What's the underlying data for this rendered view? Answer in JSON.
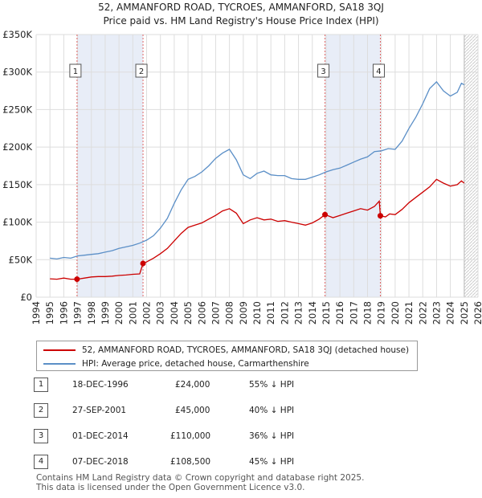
{
  "header": {
    "title_line1": "52, AMMANFORD ROAD, TYCROES, AMMANFORD, SA18 3QJ",
    "title_line2": "Price paid vs. HM Land Registry's House Price Index (HPI)"
  },
  "chart_data": {
    "type": "line",
    "title": "52, AMMANFORD ROAD, TYCROES, AMMANFORD, SA18 3QJ — Price paid vs. HM Land Registry's House Price Index (HPI)",
    "xlim": [
      1994,
      2026
    ],
    "ylim": [
      0,
      350000
    ],
    "y_ticks": [
      {
        "value": 0,
        "label": "£0"
      },
      {
        "value": 50000,
        "label": "£50K"
      },
      {
        "value": 100000,
        "label": "£100K"
      },
      {
        "value": 150000,
        "label": "£150K"
      },
      {
        "value": 200000,
        "label": "£200K"
      },
      {
        "value": 250000,
        "label": "£250K"
      },
      {
        "value": 300000,
        "label": "£300K"
      },
      {
        "value": 350000,
        "label": "£350K"
      }
    ],
    "x_ticks": [
      "1994",
      "1995",
      "1996",
      "1997",
      "1998",
      "1999",
      "2000",
      "2001",
      "2002",
      "2003",
      "2004",
      "2005",
      "2006",
      "2007",
      "2008",
      "2009",
      "2010",
      "2011",
      "2012",
      "2013",
      "2014",
      "2015",
      "2016",
      "2017",
      "2018",
      "2019",
      "2020",
      "2021",
      "2022",
      "2023",
      "2024",
      "2025",
      "2026"
    ],
    "ownership_shading": [
      [
        1996.96,
        2001.74
      ],
      [
        2014.92,
        2018.93
      ]
    ],
    "data_end": 2025.0,
    "sale_points": [
      {
        "id": "1",
        "x": 1996.96,
        "y": 24000
      },
      {
        "id": "2",
        "x": 2001.74,
        "y": 45000
      },
      {
        "id": "3",
        "x": 2014.92,
        "y": 110000
      },
      {
        "id": "4",
        "x": 2018.93,
        "y": 108500
      }
    ],
    "series": [
      {
        "name": "52, AMMANFORD ROAD, TYCROES, AMMANFORD, SA18 3QJ (detached house)",
        "color": "#cc0000",
        "points": [
          [
            1995,
            24500
          ],
          [
            1995.5,
            24000
          ],
          [
            1996,
            25500
          ],
          [
            1996.5,
            24000
          ],
          [
            1996.96,
            24000
          ],
          [
            1997.5,
            25500
          ],
          [
            1998,
            27000
          ],
          [
            1998.5,
            27500
          ],
          [
            1999,
            27500
          ],
          [
            1999.5,
            28000
          ],
          [
            2000,
            29000
          ],
          [
            2000.5,
            29500
          ],
          [
            2001,
            30500
          ],
          [
            2001.5,
            31000
          ],
          [
            2001.74,
            45000
          ],
          [
            2002,
            47000
          ],
          [
            2002.5,
            52000
          ],
          [
            2003,
            58000
          ],
          [
            2003.5,
            65000
          ],
          [
            2004,
            75000
          ],
          [
            2004.5,
            85000
          ],
          [
            2005,
            93000
          ],
          [
            2005.5,
            96000
          ],
          [
            2006,
            99000
          ],
          [
            2006.5,
            104000
          ],
          [
            2007,
            109000
          ],
          [
            2007.5,
            115000
          ],
          [
            2008,
            118000
          ],
          [
            2008.5,
            112000
          ],
          [
            2009,
            98000
          ],
          [
            2009.5,
            103000
          ],
          [
            2010,
            106000
          ],
          [
            2010.5,
            103000
          ],
          [
            2011,
            104000
          ],
          [
            2011.5,
            101000
          ],
          [
            2012,
            102000
          ],
          [
            2012.5,
            100000
          ],
          [
            2013,
            98000
          ],
          [
            2013.5,
            96000
          ],
          [
            2014,
            99000
          ],
          [
            2014.5,
            104000
          ],
          [
            2014.92,
            110000
          ],
          [
            2015.5,
            106000
          ],
          [
            2016,
            109000
          ],
          [
            2016.5,
            112000
          ],
          [
            2017,
            115000
          ],
          [
            2017.5,
            118000
          ],
          [
            2018,
            116000
          ],
          [
            2018.5,
            121000
          ],
          [
            2018.85,
            128000
          ],
          [
            2018.93,
            108500
          ],
          [
            2019.3,
            107000
          ],
          [
            2019.6,
            111000
          ],
          [
            2020,
            110000
          ],
          [
            2020.5,
            117000
          ],
          [
            2021,
            126000
          ],
          [
            2021.5,
            133000
          ],
          [
            2022,
            140000
          ],
          [
            2022.5,
            147000
          ],
          [
            2023,
            157000
          ],
          [
            2023.5,
            152000
          ],
          [
            2024,
            148000
          ],
          [
            2024.5,
            150000
          ],
          [
            2024.8,
            155000
          ],
          [
            2025,
            152000
          ]
        ]
      },
      {
        "name": "HPI: Average price, detached house, Carmarthenshire",
        "color": "#5b8fc7",
        "points": [
          [
            1995,
            52000
          ],
          [
            1995.5,
            51000
          ],
          [
            1996,
            53000
          ],
          [
            1996.5,
            52000
          ],
          [
            1997,
            55000
          ],
          [
            1997.5,
            56000
          ],
          [
            1998,
            57000
          ],
          [
            1998.5,
            58000
          ],
          [
            1999,
            60000
          ],
          [
            1999.5,
            62000
          ],
          [
            2000,
            65000
          ],
          [
            2000.5,
            67000
          ],
          [
            2001,
            69000
          ],
          [
            2001.5,
            72000
          ],
          [
            2002,
            76000
          ],
          [
            2002.5,
            82000
          ],
          [
            2003,
            92000
          ],
          [
            2003.5,
            105000
          ],
          [
            2004,
            125000
          ],
          [
            2004.5,
            143000
          ],
          [
            2005,
            157000
          ],
          [
            2005.5,
            161000
          ],
          [
            2006,
            167000
          ],
          [
            2006.5,
            175000
          ],
          [
            2007,
            185000
          ],
          [
            2007.5,
            192000
          ],
          [
            2008,
            197000
          ],
          [
            2008.5,
            183000
          ],
          [
            2009,
            163000
          ],
          [
            2009.5,
            158000
          ],
          [
            2010,
            165000
          ],
          [
            2010.5,
            168000
          ],
          [
            2011,
            163000
          ],
          [
            2011.5,
            162000
          ],
          [
            2012,
            162000
          ],
          [
            2012.5,
            158000
          ],
          [
            2013,
            157000
          ],
          [
            2013.5,
            157000
          ],
          [
            2014,
            160000
          ],
          [
            2014.5,
            163000
          ],
          [
            2015,
            167000
          ],
          [
            2015.5,
            170000
          ],
          [
            2016,
            172000
          ],
          [
            2016.5,
            176000
          ],
          [
            2017,
            180000
          ],
          [
            2017.5,
            184000
          ],
          [
            2018,
            187000
          ],
          [
            2018.5,
            194000
          ],
          [
            2019,
            195000
          ],
          [
            2019.5,
            198000
          ],
          [
            2020,
            197000
          ],
          [
            2020.5,
            208000
          ],
          [
            2021,
            225000
          ],
          [
            2021.5,
            240000
          ],
          [
            2022,
            258000
          ],
          [
            2022.5,
            278000
          ],
          [
            2023,
            287000
          ],
          [
            2023.5,
            275000
          ],
          [
            2024,
            268000
          ],
          [
            2024.5,
            273000
          ],
          [
            2024.8,
            285000
          ],
          [
            2025,
            283000
          ]
        ]
      }
    ]
  },
  "legend": {
    "items": [
      {
        "label": "52, AMMANFORD ROAD, TYCROES, AMMANFORD, SA18 3QJ (detached house)",
        "color": "#cc0000"
      },
      {
        "label": "HPI: Average price, detached house, Carmarthenshire",
        "color": "#5b8fc7"
      }
    ]
  },
  "sales": [
    {
      "id": "1",
      "date": "18-DEC-1996",
      "price": "£24,000",
      "hpi": "55% ↓ HPI"
    },
    {
      "id": "2",
      "date": "27-SEP-2001",
      "price": "£45,000",
      "hpi": "40% ↓ HPI"
    },
    {
      "id": "3",
      "date": "01-DEC-2014",
      "price": "£110,000",
      "hpi": "36% ↓ HPI"
    },
    {
      "id": "4",
      "date": "07-DEC-2018",
      "price": "£108,500",
      "hpi": "45% ↓ HPI"
    }
  ],
  "footer": {
    "line1": "Contains HM Land Registry data © Crown copyright and database right 2025.",
    "line2": "This data is licensed under the Open Government Licence v3.0."
  }
}
